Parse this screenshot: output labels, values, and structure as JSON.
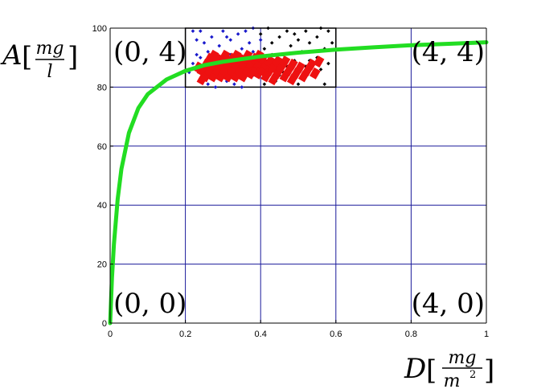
{
  "chart_data": {
    "type": "scatter",
    "xlim": [
      0,
      1
    ],
    "ylim": [
      0,
      100
    ],
    "x_ticks": [
      0,
      0.2,
      0.4,
      0.6,
      0.8,
      1
    ],
    "x_tick_labels": [
      "0",
      "0.2",
      "0.4",
      "0.6",
      "0.8",
      "1"
    ],
    "y_ticks": [
      0,
      20,
      40,
      60,
      80,
      100
    ],
    "y_tick_labels": [
      "0",
      "20",
      "40",
      "60",
      "80",
      "100"
    ],
    "grid": true,
    "xlabel": {
      "main": "D",
      "frac_num": "mg",
      "frac_den": "m",
      "frac_den_sup": "2"
    },
    "ylabel": {
      "main": "A",
      "frac_num": "mg",
      "frac_den": "l"
    },
    "corner_labels": [
      {
        "text": "(0, 4)",
        "x": 0,
        "y": 100
      },
      {
        "text": "(4, 4)",
        "x": 1,
        "y": 100
      },
      {
        "text": "(0, 0)",
        "x": 0,
        "y": 0
      },
      {
        "text": "(4, 0)",
        "x": 1,
        "y": 0
      }
    ],
    "highlight_box": {
      "x": [
        0.2,
        0.6
      ],
      "y": [
        80,
        100
      ]
    },
    "colors": {
      "curve": "#22dd22",
      "series_blue": "#1a1acc",
      "series_black": "#000000",
      "series_red": "#ee1111",
      "grid": "#1a1a9a"
    },
    "curve": {
      "x": [
        0,
        0.005,
        0.01,
        0.02,
        0.03,
        0.05,
        0.075,
        0.1,
        0.15,
        0.2,
        0.25,
        0.3,
        0.4,
        0.5,
        0.6,
        0.7,
        0.8,
        0.9,
        1.0
      ],
      "y": [
        0,
        15.4,
        26.7,
        42.1,
        52.2,
        64.5,
        72.9,
        77.6,
        82.6,
        85.5,
        87.4,
        88.6,
        90.4,
        91.7,
        92.7,
        93.5,
        94.2,
        94.7,
        95.2
      ]
    },
    "series": [
      {
        "color": "blue",
        "points": [
          [
            0.21,
            85
          ],
          [
            0.22,
            88
          ],
          [
            0.23,
            96
          ],
          [
            0.23,
            91
          ],
          [
            0.24,
            99
          ],
          [
            0.24,
            83
          ],
          [
            0.25,
            95
          ],
          [
            0.25,
            87
          ],
          [
            0.26,
            92
          ],
          [
            0.26,
            81
          ],
          [
            0.27,
            97
          ],
          [
            0.27,
            84
          ],
          [
            0.28,
            89
          ],
          [
            0.28,
            80
          ],
          [
            0.29,
            94
          ],
          [
            0.3,
            86
          ],
          [
            0.3,
            99
          ],
          [
            0.31,
            82
          ],
          [
            0.32,
            91
          ],
          [
            0.32,
            96
          ],
          [
            0.33,
            85
          ],
          [
            0.34,
            98
          ],
          [
            0.35,
            80
          ],
          [
            0.35,
            93
          ],
          [
            0.36,
            87
          ],
          [
            0.37,
            95
          ],
          [
            0.38,
            100
          ],
          [
            0.38,
            84
          ],
          [
            0.39,
            90
          ],
          [
            0.4,
            96
          ],
          [
            0.22,
            99
          ],
          [
            0.24,
            90
          ],
          [
            0.26,
            86
          ],
          [
            0.29,
            83
          ],
          [
            0.31,
            97
          ],
          [
            0.33,
            81
          ],
          [
            0.36,
            99
          ],
          [
            0.38,
            92
          ]
        ]
      },
      {
        "color": "black",
        "points": [
          [
            0.4,
            98
          ],
          [
            0.41,
            93
          ],
          [
            0.42,
            86
          ],
          [
            0.42,
            100
          ],
          [
            0.43,
            95
          ],
          [
            0.44,
            88
          ],
          [
            0.44,
            82
          ],
          [
            0.45,
            97
          ],
          [
            0.46,
            91
          ],
          [
            0.46,
            85
          ],
          [
            0.47,
            99
          ],
          [
            0.48,
            94
          ],
          [
            0.48,
            83
          ],
          [
            0.49,
            89
          ],
          [
            0.5,
            96
          ],
          [
            0.5,
            81
          ],
          [
            0.51,
            92
          ],
          [
            0.52,
            87
          ],
          [
            0.52,
            99
          ],
          [
            0.53,
            95
          ],
          [
            0.54,
            84
          ],
          [
            0.55,
            90
          ],
          [
            0.55,
            97
          ],
          [
            0.56,
            86
          ],
          [
            0.57,
            93
          ],
          [
            0.57,
            81
          ],
          [
            0.58,
            99
          ],
          [
            0.58,
            88
          ],
          [
            0.59,
            95
          ],
          [
            0.43,
            91
          ],
          [
            0.45,
            84
          ],
          [
            0.47,
            87
          ],
          [
            0.49,
            98
          ],
          [
            0.51,
            83
          ],
          [
            0.53,
            89
          ],
          [
            0.56,
            100
          ],
          [
            0.41,
            81
          ],
          [
            0.54,
            92
          ]
        ]
      },
      {
        "color": "red",
        "points": [
          [
            0.24,
            86
          ],
          [
            0.25,
            88
          ],
          [
            0.25,
            84
          ],
          [
            0.26,
            90
          ],
          [
            0.26,
            86
          ],
          [
            0.27,
            88
          ],
          [
            0.27,
            84
          ],
          [
            0.28,
            90
          ],
          [
            0.28,
            86
          ],
          [
            0.29,
            88
          ],
          [
            0.29,
            84
          ],
          [
            0.3,
            90
          ],
          [
            0.3,
            86
          ],
          [
            0.31,
            88
          ],
          [
            0.31,
            84
          ],
          [
            0.32,
            90
          ],
          [
            0.32,
            86
          ],
          [
            0.33,
            88
          ],
          [
            0.33,
            84
          ],
          [
            0.34,
            90
          ],
          [
            0.34,
            86
          ],
          [
            0.35,
            88
          ],
          [
            0.35,
            84
          ],
          [
            0.36,
            90
          ],
          [
            0.36,
            86
          ],
          [
            0.37,
            88
          ],
          [
            0.37,
            85
          ],
          [
            0.38,
            90
          ],
          [
            0.38,
            86
          ],
          [
            0.39,
            88
          ],
          [
            0.39,
            85
          ],
          [
            0.4,
            90
          ],
          [
            0.4,
            86
          ],
          [
            0.41,
            88
          ],
          [
            0.42,
            89
          ],
          [
            0.42,
            86
          ],
          [
            0.43,
            87
          ],
          [
            0.44,
            89
          ],
          [
            0.44,
            85
          ],
          [
            0.45,
            87
          ],
          [
            0.46,
            89
          ],
          [
            0.46,
            84
          ],
          [
            0.47,
            86
          ],
          [
            0.48,
            88
          ],
          [
            0.48,
            83
          ],
          [
            0.49,
            85
          ],
          [
            0.5,
            87
          ],
          [
            0.51,
            84
          ],
          [
            0.52,
            86
          ],
          [
            0.53,
            88
          ],
          [
            0.54,
            85
          ],
          [
            0.55,
            89
          ],
          [
            0.23,
            87
          ],
          [
            0.24,
            83
          ],
          [
            0.27,
            91
          ],
          [
            0.3,
            91
          ],
          [
            0.33,
            91
          ],
          [
            0.36,
            91
          ],
          [
            0.39,
            91
          ],
          [
            0.41,
            84
          ],
          [
            0.43,
            83
          ]
        ]
      }
    ]
  }
}
